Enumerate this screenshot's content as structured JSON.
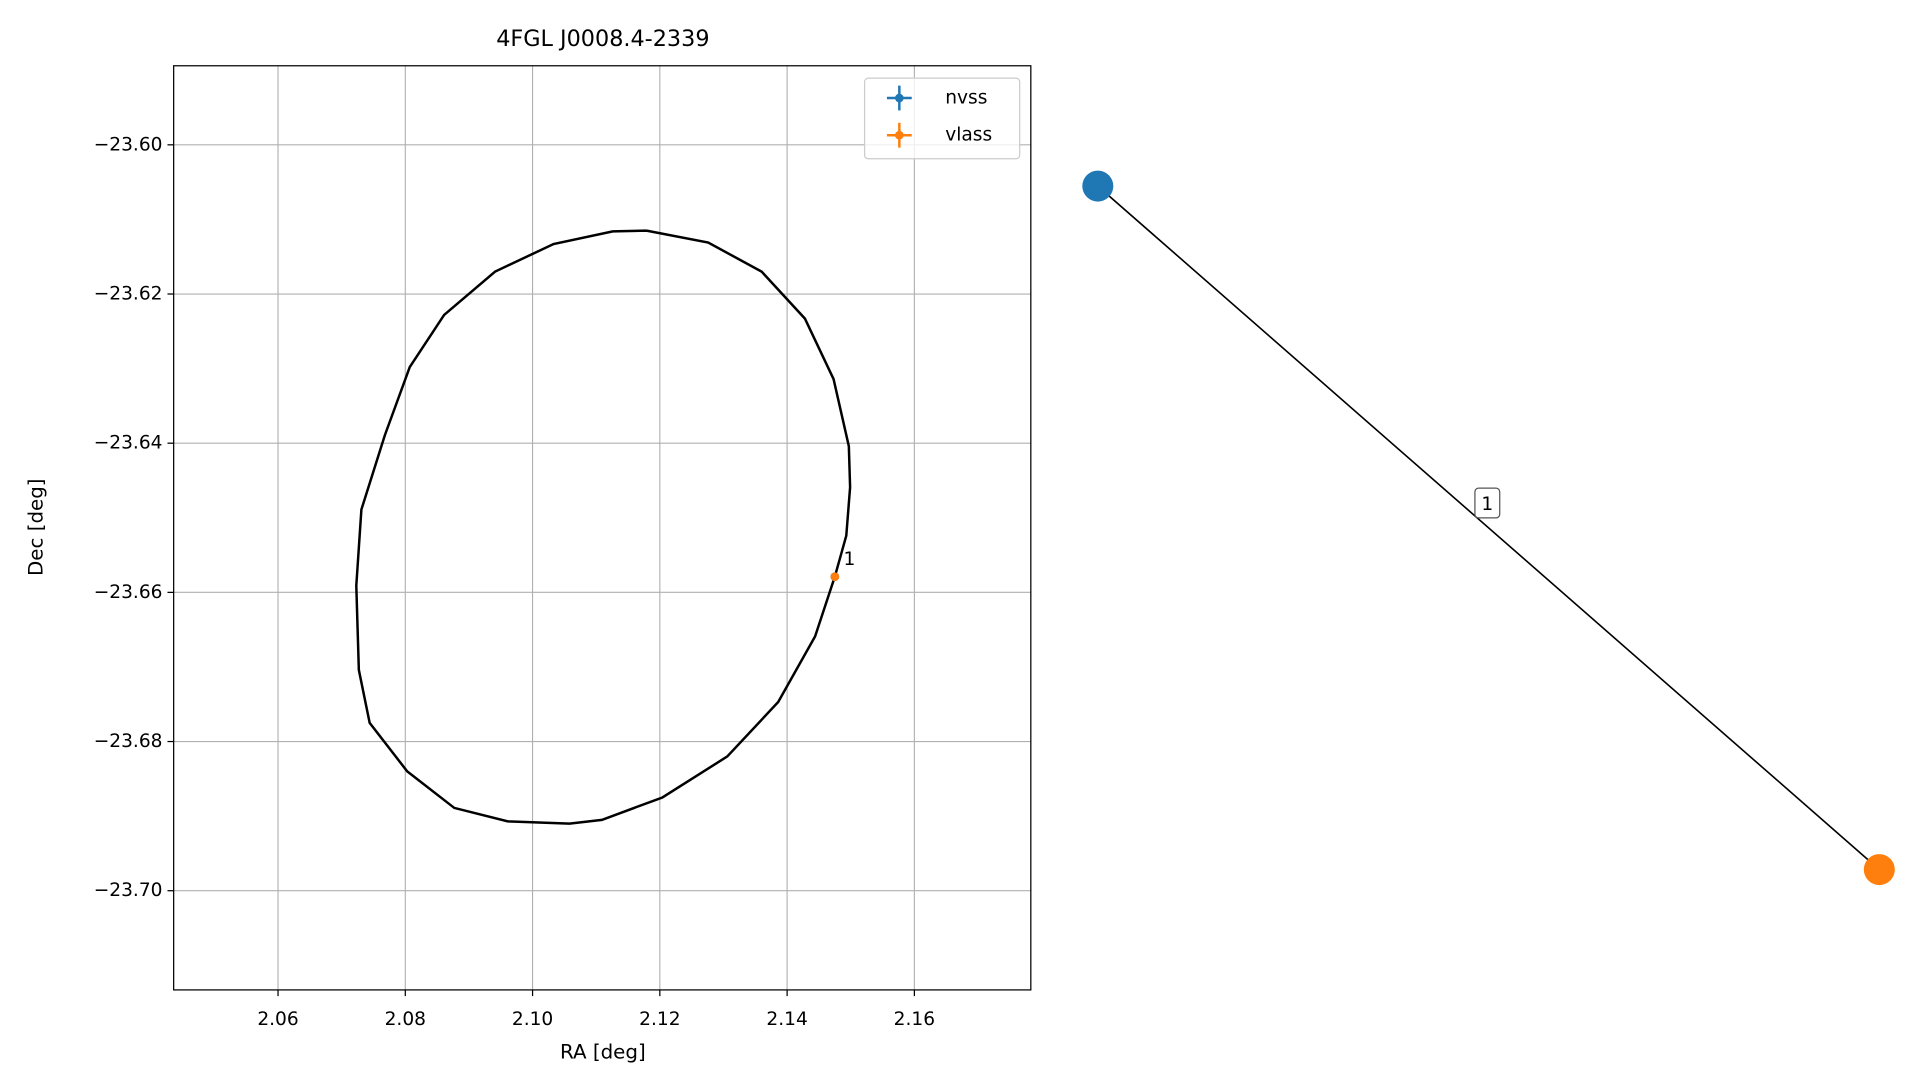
{
  "chart_data": [
    {
      "type": "scatter",
      "title": "4FGL J0008.4-2339",
      "x_label": "RA [deg]",
      "y_label": "Dec [deg]",
      "xlim": [
        2.0436,
        2.1783
      ],
      "ylim": [
        -23.7133,
        -23.5894
      ],
      "xticks": [
        2.06,
        2.08,
        {
          "value": 2.1,
          "label": "2.10"
        },
        2.12,
        2.14,
        2.16
      ],
      "yticks": [
        {
          "value": -23.6,
          "label": "−23.60"
        },
        {
          "value": -23.62,
          "label": "−23.62"
        },
        {
          "value": -23.64,
          "label": "−23.64"
        },
        {
          "value": -23.66,
          "label": "−23.66"
        },
        {
          "value": -23.68,
          "label": "−23.68"
        },
        {
          "value": -23.7,
          "label": "−23.70"
        }
      ],
      "grid": true,
      "legend": "upper right",
      "series": [
        {
          "name": "nvss",
          "color": "#1f77b4",
          "x": [
            2.1475
          ],
          "values": [
            -23.6579
          ]
        },
        {
          "name": "vlass",
          "color": "#ff7f0e",
          "x": [
            2.1475
          ],
          "values": [
            -23.6579
          ]
        }
      ],
      "lines": [
        {
          "color": "#000000",
          "x": [
            2.1179,
            2.1276,
            2.136,
            2.1428,
            2.1473,
            2.1497,
            2.1499,
            2.1493,
            2.1475,
            2.1444,
            2.1386,
            2.1306,
            2.1204,
            2.1109,
            2.1058,
            2.0961,
            2.0877,
            2.0803,
            2.0744,
            2.0727,
            2.0723,
            2.0731,
            2.0768,
            2.0807,
            2.0861,
            2.0941,
            2.1033,
            2.1126,
            2.1179
          ],
          "values": [
            -23.6115,
            -23.6131,
            -23.617,
            -23.6233,
            -23.6314,
            -23.6404,
            -23.6459,
            -23.6524,
            -23.6579,
            -23.6659,
            -23.6747,
            -23.682,
            -23.6875,
            -23.6905,
            -23.691,
            -23.6907,
            -23.6889,
            -23.684,
            -23.6775,
            -23.6704,
            -23.6591,
            -23.6489,
            -23.6389,
            -23.6298,
            -23.6228,
            -23.617,
            -23.6133,
            -23.6116,
            -23.6115
          ]
        }
      ],
      "annotations": [
        {
          "text": "1",
          "x": 2.1475,
          "y": -23.6579
        }
      ]
    },
    {
      "type": "graph",
      "nodes": [
        {
          "color": "#1f77b4"
        },
        {
          "color": "#ff7f0e"
        }
      ],
      "edges": [
        {
          "label": "1",
          "color": "#000000"
        }
      ]
    }
  ]
}
